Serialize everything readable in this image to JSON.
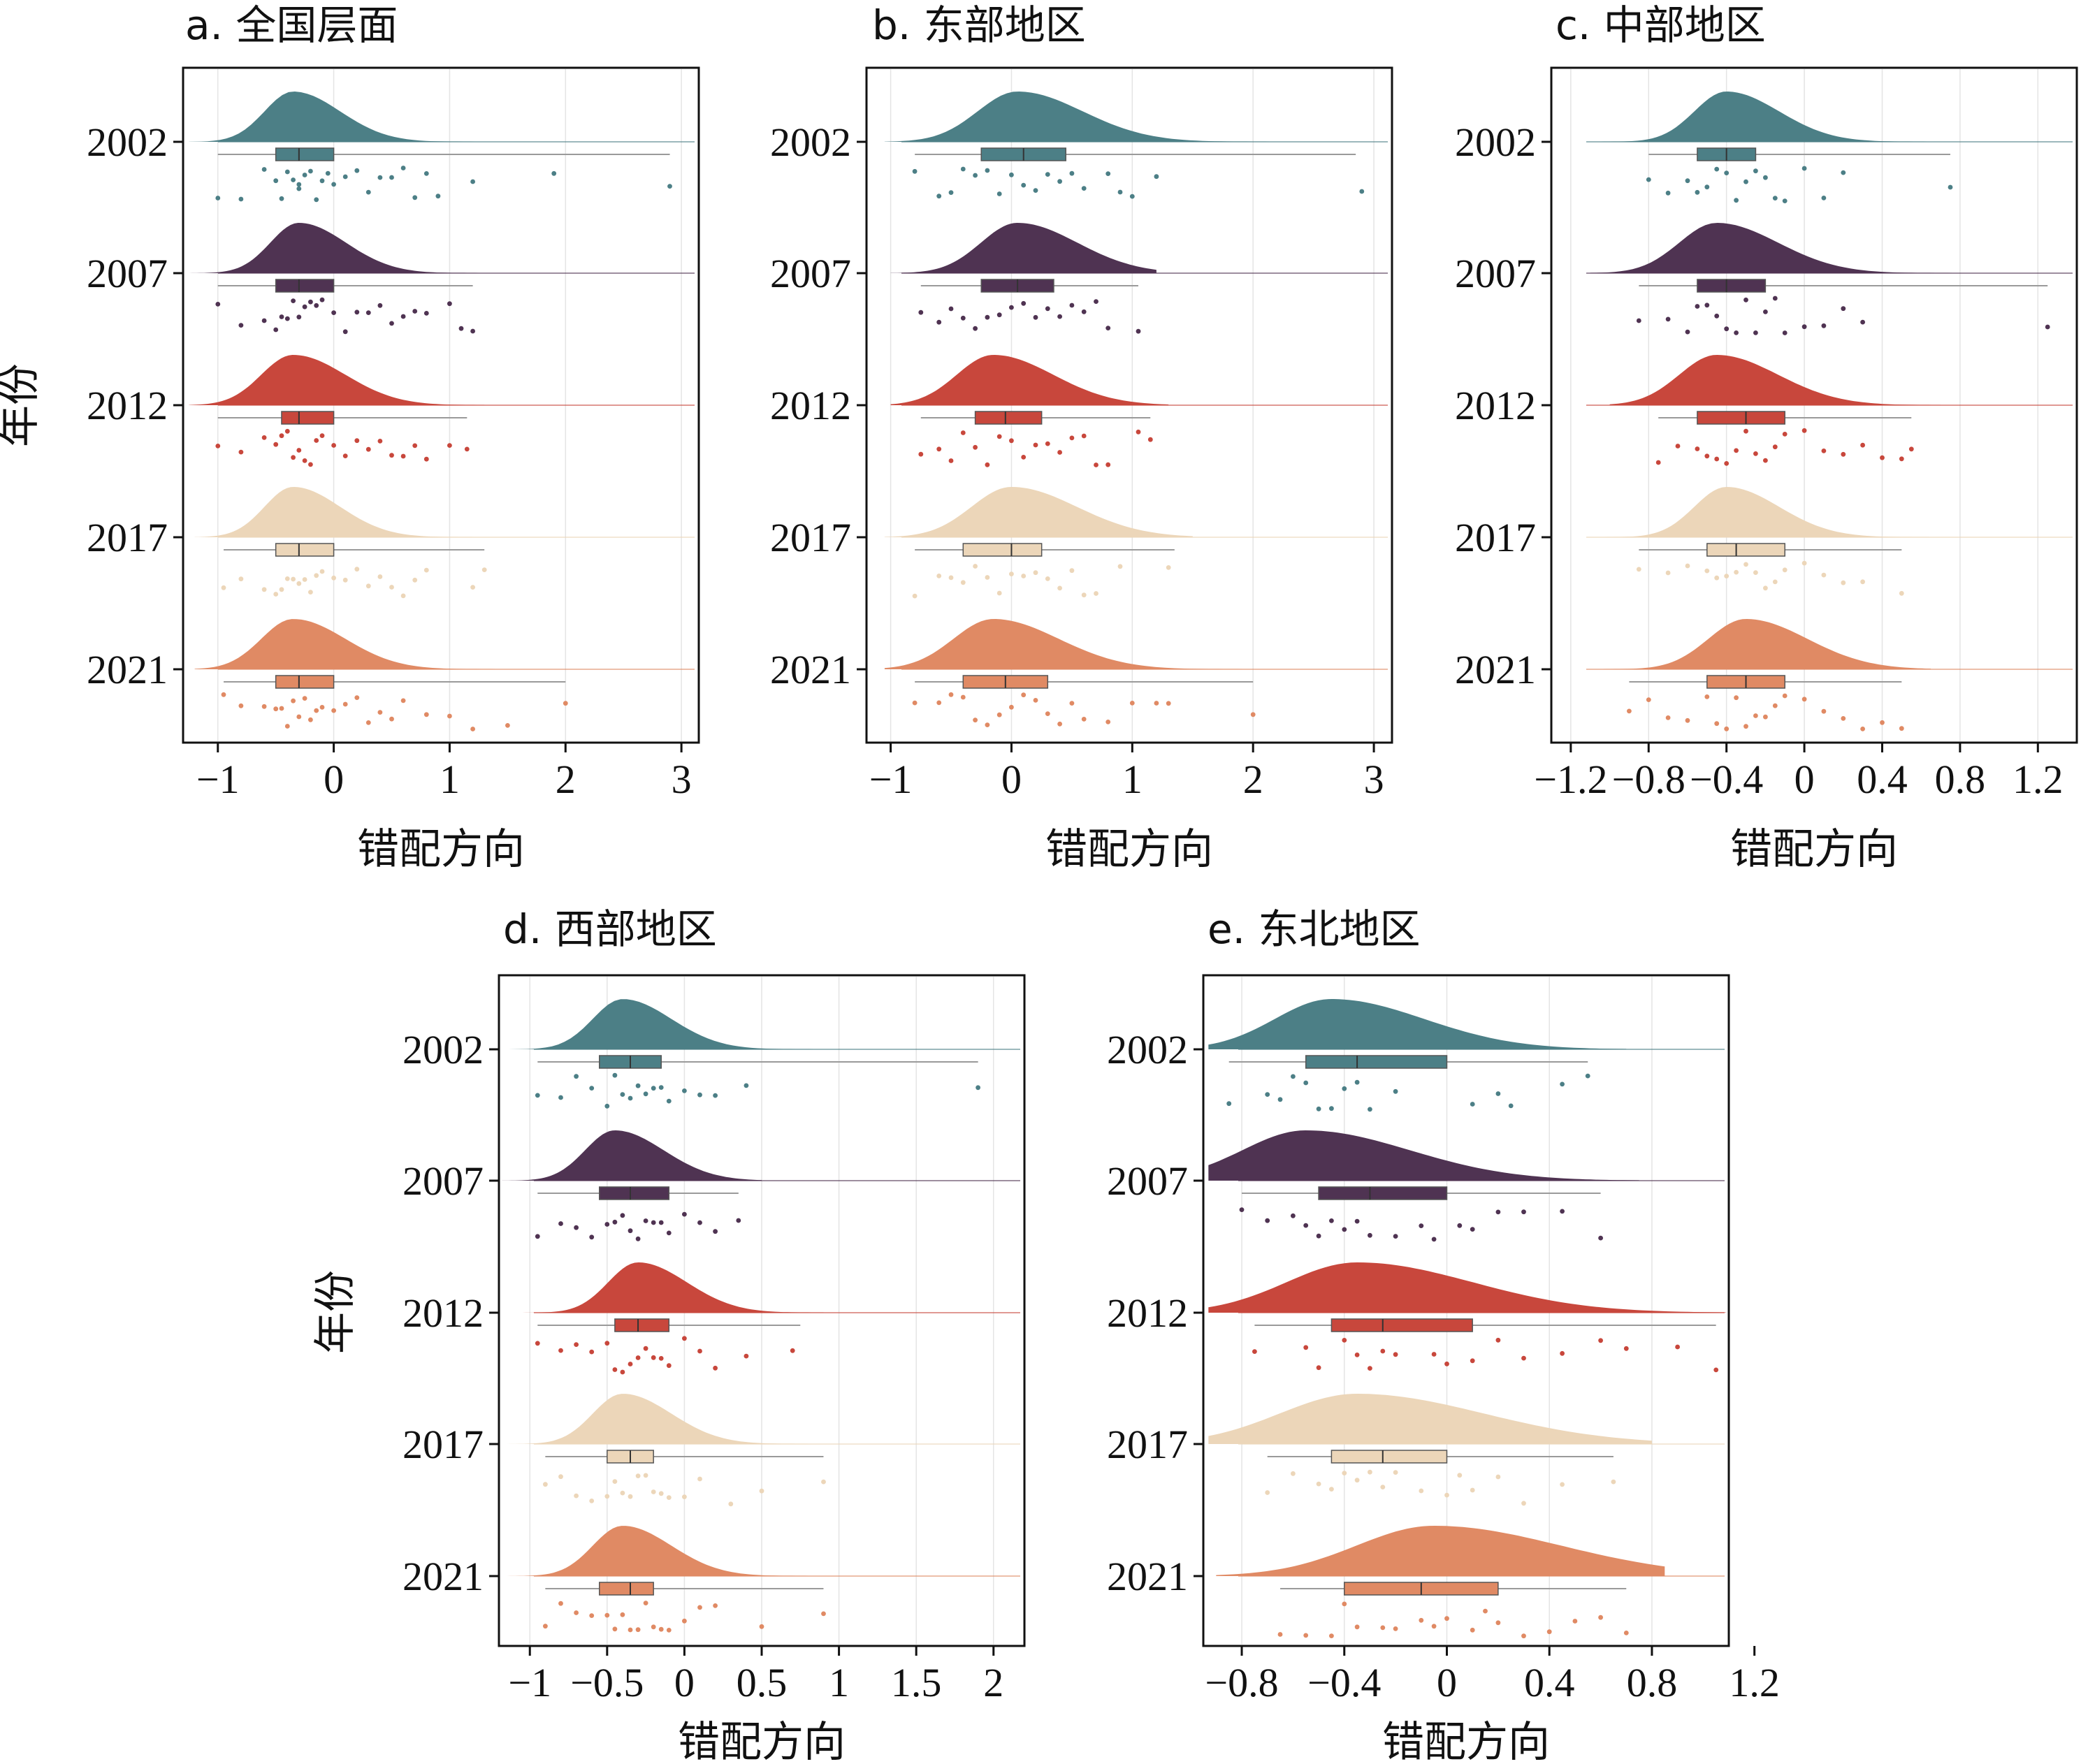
{
  "colors": {
    "2002": "#4c7f86",
    "2007": "#4f3352",
    "2012": "#c8473c",
    "2017": "#ecd6b9",
    "2021": "#e08a64"
  },
  "chart_data": [
    {
      "type": "raincloud",
      "title": "a. 全国层面",
      "xlabel": "错配方向",
      "ylabel": "年份",
      "xlim": [
        -1.3,
        3.15
      ],
      "xticks": [
        -1,
        0,
        1,
        2,
        3
      ],
      "xtick_labels": [
        "−1",
        "0",
        "1",
        "2",
        "3"
      ],
      "grid": true,
      "series": [
        {
          "name": "2002",
          "min": -1.0,
          "q1": -0.5,
          "median": -0.3,
          "q3": 0.0,
          "max": 2.9,
          "mode": -0.35,
          "spread": 0.45,
          "pts": [
            -1.0,
            -0.8,
            -0.6,
            -0.5,
            -0.45,
            -0.4,
            -0.35,
            -0.3,
            -0.3,
            -0.25,
            -0.2,
            -0.15,
            -0.1,
            -0.05,
            0.0,
            0.1,
            0.2,
            0.3,
            0.4,
            0.5,
            0.6,
            0.7,
            0.8,
            0.9,
            1.2,
            1.9,
            2.9
          ]
        },
        {
          "name": "2007",
          "min": -1.0,
          "q1": -0.5,
          "median": -0.3,
          "q3": 0.0,
          "max": 1.2,
          "mode": -0.3,
          "spread": 0.45,
          "pts": [
            -1.0,
            -0.8,
            -0.6,
            -0.5,
            -0.45,
            -0.4,
            -0.35,
            -0.3,
            -0.25,
            -0.2,
            -0.15,
            -0.1,
            0.0,
            0.1,
            0.2,
            0.3,
            0.4,
            0.5,
            0.6,
            0.7,
            0.8,
            1.0,
            1.1,
            1.2
          ]
        },
        {
          "name": "2012",
          "min": -1.0,
          "q1": -0.45,
          "median": -0.3,
          "q3": 0.0,
          "max": 1.15,
          "mode": -0.35,
          "spread": 0.5,
          "pts": [
            -1.0,
            -0.8,
            -0.6,
            -0.5,
            -0.45,
            -0.4,
            -0.35,
            -0.3,
            -0.25,
            -0.2,
            -0.15,
            -0.1,
            0.0,
            0.1,
            0.2,
            0.3,
            0.4,
            0.5,
            0.6,
            0.7,
            0.8,
            1.0,
            1.15
          ]
        },
        {
          "name": "2017",
          "min": -0.95,
          "q1": -0.5,
          "median": -0.3,
          "q3": 0.0,
          "max": 1.3,
          "mode": -0.35,
          "spread": 0.45,
          "pts": [
            -0.95,
            -0.8,
            -0.6,
            -0.5,
            -0.45,
            -0.4,
            -0.35,
            -0.3,
            -0.25,
            -0.2,
            -0.15,
            -0.1,
            0.0,
            0.1,
            0.2,
            0.3,
            0.4,
            0.5,
            0.6,
            0.7,
            0.8,
            1.2,
            1.3
          ]
        },
        {
          "name": "2021",
          "min": -0.95,
          "q1": -0.5,
          "median": -0.3,
          "q3": 0.0,
          "max": 2.0,
          "mode": -0.35,
          "spread": 0.5,
          "pts": [
            -0.95,
            -0.8,
            -0.6,
            -0.5,
            -0.45,
            -0.4,
            -0.35,
            -0.3,
            -0.25,
            -0.2,
            -0.15,
            -0.1,
            0.0,
            0.1,
            0.2,
            0.3,
            0.4,
            0.5,
            0.6,
            0.8,
            1.0,
            1.2,
            1.5,
            2.0
          ]
        }
      ]
    },
    {
      "type": "raincloud",
      "title": "b. 东部地区",
      "xlabel": "错配方向",
      "xlim": [
        -1.2,
        3.15
      ],
      "xticks": [
        -1,
        0,
        1,
        2,
        3
      ],
      "xtick_labels": [
        "−1",
        "0",
        "1",
        "2",
        "3"
      ],
      "grid": true,
      "series": [
        {
          "name": "2002",
          "min": -0.8,
          "q1": -0.25,
          "median": 0.1,
          "q3": 0.45,
          "max": 2.85,
          "mode": 0.05,
          "spread": 0.6,
          "pts": [
            -0.8,
            -0.6,
            -0.5,
            -0.4,
            -0.3,
            -0.2,
            -0.1,
            0.0,
            0.1,
            0.2,
            0.3,
            0.4,
            0.5,
            0.6,
            0.8,
            0.9,
            1.0,
            1.2,
            2.9
          ]
        },
        {
          "name": "2007",
          "min": -0.75,
          "q1": -0.25,
          "median": 0.05,
          "q3": 0.35,
          "max": 1.05,
          "mode": 0.05,
          "spread": 0.55,
          "pts": [
            -0.75,
            -0.6,
            -0.5,
            -0.4,
            -0.3,
            -0.2,
            -0.1,
            0.0,
            0.1,
            0.2,
            0.3,
            0.4,
            0.5,
            0.6,
            0.7,
            0.8,
            1.05
          ]
        },
        {
          "name": "2012",
          "min": -0.75,
          "q1": -0.3,
          "median": -0.05,
          "q3": 0.25,
          "max": 1.15,
          "mode": -0.15,
          "spread": 0.55,
          "pts": [
            -0.75,
            -0.6,
            -0.5,
            -0.4,
            -0.3,
            -0.2,
            -0.1,
            0.0,
            0.1,
            0.2,
            0.3,
            0.4,
            0.5,
            0.6,
            0.7,
            0.8,
            1.05,
            1.15
          ]
        },
        {
          "name": "2017",
          "min": -0.8,
          "q1": -0.4,
          "median": 0.0,
          "q3": 0.25,
          "max": 1.35,
          "mode": 0.0,
          "spread": 0.6,
          "pts": [
            -0.8,
            -0.6,
            -0.5,
            -0.4,
            -0.3,
            -0.2,
            -0.1,
            0.0,
            0.1,
            0.2,
            0.3,
            0.4,
            0.5,
            0.6,
            0.7,
            0.9,
            1.3
          ]
        },
        {
          "name": "2021",
          "min": -0.8,
          "q1": -0.4,
          "median": -0.05,
          "q3": 0.3,
          "max": 2.0,
          "mode": -0.15,
          "spread": 0.6,
          "pts": [
            -0.8,
            -0.6,
            -0.5,
            -0.4,
            -0.3,
            -0.2,
            -0.1,
            0.0,
            0.1,
            0.2,
            0.3,
            0.4,
            0.5,
            0.6,
            0.8,
            1.0,
            1.2,
            1.3,
            2.0
          ]
        }
      ]
    },
    {
      "type": "raincloud",
      "title": "c. 中部地区",
      "xlabel": "错配方向",
      "xlim": [
        -1.3,
        1.4
      ],
      "xticks": [
        -1.2,
        -0.8,
        -0.4,
        0,
        0.4,
        0.8,
        1.2
      ],
      "xtick_labels": [
        "−1.2",
        "−0.8",
        "−0.4",
        "0",
        "0.4",
        "0.8",
        "1.2"
      ],
      "grid": true,
      "series": [
        {
          "name": "2002",
          "min": -0.8,
          "q1": -0.55,
          "median": -0.4,
          "q3": -0.25,
          "max": 0.75,
          "mode": -0.4,
          "spread": 0.3,
          "pts": [
            -0.8,
            -0.7,
            -0.6,
            -0.55,
            -0.5,
            -0.45,
            -0.4,
            -0.35,
            -0.3,
            -0.25,
            -0.2,
            -0.15,
            -0.1,
            0.0,
            0.1,
            0.2,
            0.75
          ]
        },
        {
          "name": "2007",
          "min": -0.85,
          "q1": -0.55,
          "median": -0.4,
          "q3": -0.2,
          "max": 1.25,
          "mode": -0.45,
          "spread": 0.35,
          "pts": [
            -0.85,
            -0.7,
            -0.6,
            -0.55,
            -0.5,
            -0.45,
            -0.4,
            -0.35,
            -0.3,
            -0.25,
            -0.2,
            -0.15,
            -0.1,
            0.0,
            0.1,
            0.2,
            0.3,
            1.25
          ]
        },
        {
          "name": "2012",
          "min": -0.75,
          "q1": -0.55,
          "median": -0.3,
          "q3": -0.1,
          "max": 0.55,
          "mode": -0.45,
          "spread": 0.35,
          "pts": [
            -0.75,
            -0.65,
            -0.55,
            -0.5,
            -0.45,
            -0.4,
            -0.35,
            -0.3,
            -0.25,
            -0.2,
            -0.15,
            -0.1,
            0.0,
            0.1,
            0.2,
            0.3,
            0.4,
            0.5,
            0.55
          ]
        },
        {
          "name": "2017",
          "min": -0.85,
          "q1": -0.5,
          "median": -0.35,
          "q3": -0.1,
          "max": 0.5,
          "mode": -0.4,
          "spread": 0.3,
          "pts": [
            -0.85,
            -0.7,
            -0.6,
            -0.5,
            -0.45,
            -0.4,
            -0.35,
            -0.3,
            -0.25,
            -0.2,
            -0.15,
            -0.1,
            0.0,
            0.1,
            0.2,
            0.3,
            0.5
          ]
        },
        {
          "name": "2021",
          "min": -0.9,
          "q1": -0.5,
          "median": -0.3,
          "q3": -0.1,
          "max": 0.5,
          "mode": -0.3,
          "spread": 0.35,
          "pts": [
            -0.9,
            -0.8,
            -0.7,
            -0.6,
            -0.5,
            -0.45,
            -0.4,
            -0.35,
            -0.3,
            -0.25,
            -0.2,
            -0.15,
            -0.1,
            0.0,
            0.1,
            0.2,
            0.3,
            0.4,
            0.5
          ]
        }
      ]
    },
    {
      "type": "raincloud",
      "title": "d. 西部地区",
      "xlabel": "错配方向",
      "ylabel": "年份",
      "xlim": [
        -1.2,
        2.2
      ],
      "xticks": [
        -1,
        -0.5,
        0,
        0.5,
        1,
        1.5,
        2
      ],
      "xtick_labels": [
        "−1",
        "−0.5",
        "0",
        "0.5",
        "1",
        "1.5",
        "2"
      ],
      "grid": true,
      "series": [
        {
          "name": "2002",
          "min": -0.95,
          "q1": -0.55,
          "median": -0.35,
          "q3": -0.15,
          "max": 1.9,
          "mode": -0.4,
          "spread": 0.35,
          "pts": [
            -0.95,
            -0.8,
            -0.7,
            -0.6,
            -0.5,
            -0.45,
            -0.4,
            -0.35,
            -0.3,
            -0.25,
            -0.2,
            -0.15,
            -0.1,
            0.0,
            0.1,
            0.2,
            0.4,
            1.9
          ]
        },
        {
          "name": "2007",
          "min": -0.95,
          "q1": -0.55,
          "median": -0.35,
          "q3": -0.1,
          "max": 0.35,
          "mode": -0.45,
          "spread": 0.35,
          "pts": [
            -0.95,
            -0.8,
            -0.7,
            -0.6,
            -0.5,
            -0.45,
            -0.4,
            -0.35,
            -0.3,
            -0.25,
            -0.2,
            -0.15,
            -0.1,
            0.0,
            0.1,
            0.2,
            0.35
          ]
        },
        {
          "name": "2012",
          "min": -0.95,
          "q1": -0.45,
          "median": -0.3,
          "q3": -0.1,
          "max": 0.75,
          "mode": -0.3,
          "spread": 0.35,
          "pts": [
            -0.95,
            -0.8,
            -0.7,
            -0.6,
            -0.5,
            -0.45,
            -0.4,
            -0.35,
            -0.3,
            -0.25,
            -0.2,
            -0.15,
            -0.1,
            0.0,
            0.1,
            0.2,
            0.4,
            0.7
          ]
        },
        {
          "name": "2017",
          "min": -0.9,
          "q1": -0.5,
          "median": -0.35,
          "q3": -0.2,
          "max": 0.9,
          "mode": -0.4,
          "spread": 0.35,
          "pts": [
            -0.9,
            -0.8,
            -0.7,
            -0.6,
            -0.5,
            -0.45,
            -0.4,
            -0.35,
            -0.3,
            -0.25,
            -0.2,
            -0.15,
            -0.1,
            0.0,
            0.1,
            0.3,
            0.5,
            0.9
          ]
        },
        {
          "name": "2021",
          "min": -0.9,
          "q1": -0.55,
          "median": -0.35,
          "q3": -0.2,
          "max": 0.9,
          "mode": -0.4,
          "spread": 0.35,
          "pts": [
            -0.9,
            -0.8,
            -0.7,
            -0.6,
            -0.5,
            -0.45,
            -0.4,
            -0.35,
            -0.3,
            -0.25,
            -0.2,
            -0.15,
            -0.1,
            0.0,
            0.1,
            0.2,
            0.5,
            0.9
          ]
        }
      ]
    },
    {
      "type": "raincloud",
      "title": "e. 东北地区",
      "xlabel": "错配方向",
      "xlim": [
        -0.95,
        1.1
      ],
      "xticks": [
        -0.8,
        -0.4,
        0,
        0.4,
        0.8,
        1.2
      ],
      "xtick_labels": [
        "−0.8",
        "−0.4",
        "0",
        "0.4",
        "0.8",
        "1.2"
      ],
      "grid": true,
      "series": [
        {
          "name": "2002",
          "min": -0.85,
          "q1": -0.55,
          "median": -0.35,
          "q3": 0.0,
          "max": 0.55,
          "mode": -0.45,
          "spread": 0.4,
          "pts": [
            -0.85,
            -0.7,
            -0.65,
            -0.6,
            -0.55,
            -0.5,
            -0.45,
            -0.4,
            -0.35,
            -0.3,
            -0.2,
            0.1,
            0.2,
            0.25,
            0.45,
            0.55
          ]
        },
        {
          "name": "2007",
          "min": -0.8,
          "q1": -0.5,
          "median": -0.3,
          "q3": 0.0,
          "max": 0.6,
          "mode": -0.55,
          "spread": 0.45,
          "pts": [
            -0.8,
            -0.7,
            -0.6,
            -0.55,
            -0.5,
            -0.45,
            -0.4,
            -0.35,
            -0.3,
            -0.2,
            -0.1,
            -0.05,
            0.05,
            0.1,
            0.2,
            0.3,
            0.45,
            0.6
          ]
        },
        {
          "name": "2012",
          "min": -0.75,
          "q1": -0.45,
          "median": -0.25,
          "q3": 0.1,
          "max": 1.05,
          "mode": -0.35,
          "spread": 0.5,
          "pts": [
            -0.75,
            -0.55,
            -0.5,
            -0.4,
            -0.35,
            -0.3,
            -0.25,
            -0.2,
            -0.05,
            0.0,
            0.1,
            0.2,
            0.3,
            0.45,
            0.6,
            0.7,
            0.9,
            1.05
          ]
        },
        {
          "name": "2017",
          "min": -0.7,
          "q1": -0.45,
          "median": -0.25,
          "q3": 0.0,
          "max": 0.65,
          "mode": -0.35,
          "spread": 0.55,
          "pts": [
            -0.7,
            -0.6,
            -0.5,
            -0.45,
            -0.4,
            -0.35,
            -0.3,
            -0.25,
            -0.2,
            -0.1,
            0.0,
            0.05,
            0.1,
            0.2,
            0.3,
            0.45,
            0.65
          ]
        },
        {
          "name": "2021",
          "min": -0.65,
          "q1": -0.4,
          "median": -0.1,
          "q3": 0.2,
          "max": 0.7,
          "mode": -0.05,
          "spread": 0.55,
          "pts": [
            -0.65,
            -0.55,
            -0.45,
            -0.4,
            -0.35,
            -0.25,
            -0.2,
            -0.1,
            -0.05,
            0.0,
            0.1,
            0.15,
            0.2,
            0.3,
            0.4,
            0.5,
            0.6,
            0.7
          ]
        }
      ]
    }
  ]
}
